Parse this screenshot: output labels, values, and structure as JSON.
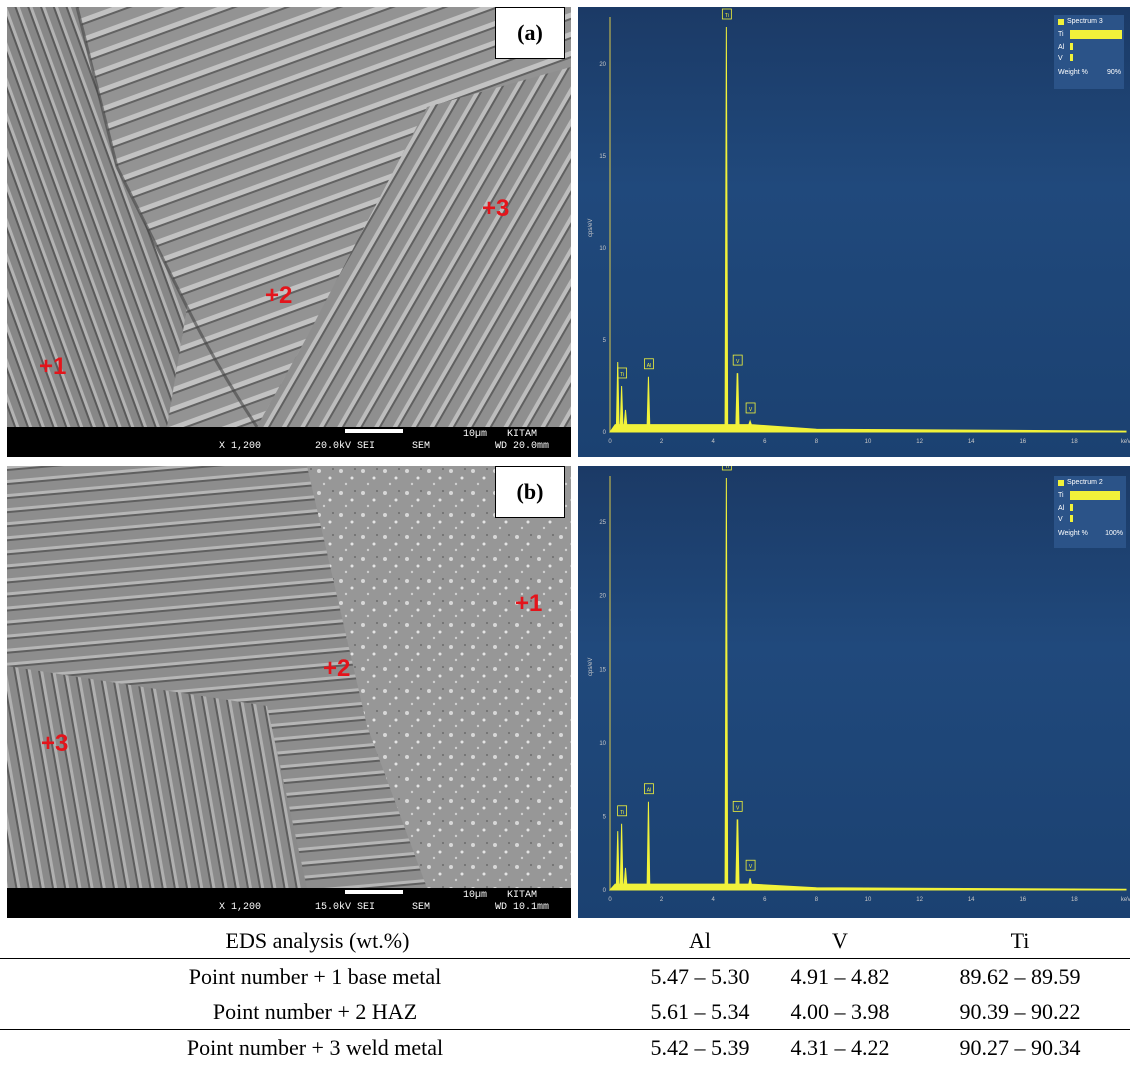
{
  "figure": {
    "panel_a": {
      "label": "(a)",
      "markers": [
        "+1",
        "+2",
        "+3"
      ],
      "infobar": {
        "mag": "X 1,200",
        "kv": "20.0kV SEI",
        "mode": "SEM",
        "scale": "10µm",
        "lab": "KITAM",
        "wd": "WD 20.0mm"
      },
      "spectrum": {
        "legend_title": "Spectrum 3",
        "legend_items": [
          "Ti",
          "Al",
          "V"
        ],
        "legend_footer": "Weight %",
        "legend_max": "90%",
        "y_ticks": [
          "0",
          "5",
          "10",
          "15",
          "20"
        ],
        "x_ticks": [
          "0",
          "2",
          "4",
          "6",
          "8",
          "10",
          "12",
          "14",
          "16",
          "18",
          "keV"
        ],
        "y_axis_label": "cps/eV",
        "peaks": [
          "Ti",
          "Al",
          "Ti",
          "V",
          "V"
        ]
      }
    },
    "panel_b": {
      "label": "(b)",
      "markers": [
        "+1",
        "+2",
        "+3"
      ],
      "infobar": {
        "mag": "X 1,200",
        "kv": "15.0kV SEI",
        "mode": "SEM",
        "scale": "10µm",
        "lab": "KITAM",
        "wd": "WD 10.1mm"
      },
      "spectrum": {
        "legend_title": "Spectrum 2",
        "legend_items": [
          "Ti",
          "Al",
          "V"
        ],
        "legend_footer": "Weight %",
        "legend_max": "100%",
        "y_ticks": [
          "0",
          "5",
          "10",
          "15",
          "20",
          "25"
        ],
        "x_ticks": [
          "0",
          "2",
          "4",
          "6",
          "8",
          "10",
          "12",
          "14",
          "16",
          "18",
          "keV"
        ],
        "y_axis_label": "cps/eV",
        "peaks": [
          "Ti",
          "Al",
          "Ti",
          "V",
          "V"
        ]
      }
    }
  },
  "table": {
    "header": [
      "EDS analysis (wt.%)",
      "Al",
      "V",
      "Ti"
    ],
    "rows": [
      [
        "Point number  + 1 base metal",
        "5.47 – 5.30",
        "4.91 – 4.82",
        "89.62 – 89.59"
      ],
      [
        "Point number  + 2 HAZ",
        "5.61 – 5.34",
        "4.00 – 3.98",
        "90.39 – 90.22"
      ],
      [
        "Point number  + 3 weld metal",
        "5.42 – 5.39",
        "4.31 – 4.22",
        "90.27 – 90.34"
      ]
    ]
  },
  "chart_data": [
    {
      "type": "line",
      "title": "",
      "xlabel": "keV",
      "ylabel": "cps/eV",
      "xlim": [
        0,
        20
      ],
      "ylim": [
        0,
        22
      ],
      "series": [
        {
          "name": "Spectrum 3",
          "x": [
            0.3,
            0.45,
            0.6,
            1.49,
            4.51,
            4.93,
            4.95,
            5.43
          ],
          "y": [
            3.8,
            2.5,
            1.2,
            3.0,
            22.0,
            3.2,
            3.2,
            0.6
          ]
        }
      ],
      "legend_weights": [
        {
          "element": "Ti",
          "weight_pct": 89.6
        },
        {
          "element": "Al",
          "weight_pct": 5.4
        },
        {
          "element": "V",
          "weight_pct": 4.9
        }
      ]
    },
    {
      "type": "line",
      "title": "",
      "xlabel": "keV",
      "ylabel": "cps/eV",
      "xlim": [
        0,
        20
      ],
      "ylim": [
        0,
        28
      ],
      "series": [
        {
          "name": "Spectrum 2",
          "x": [
            0.3,
            0.45,
            0.6,
            1.49,
            4.51,
            4.93,
            4.95,
            5.43
          ],
          "y": [
            4.0,
            4.5,
            1.5,
            6.0,
            28.0,
            4.8,
            4.8,
            0.8
          ]
        }
      ],
      "legend_weights": [
        {
          "element": "Ti",
          "weight_pct": 90.3
        },
        {
          "element": "Al",
          "weight_pct": 5.4
        },
        {
          "element": "V",
          "weight_pct": 4.0
        }
      ]
    }
  ]
}
